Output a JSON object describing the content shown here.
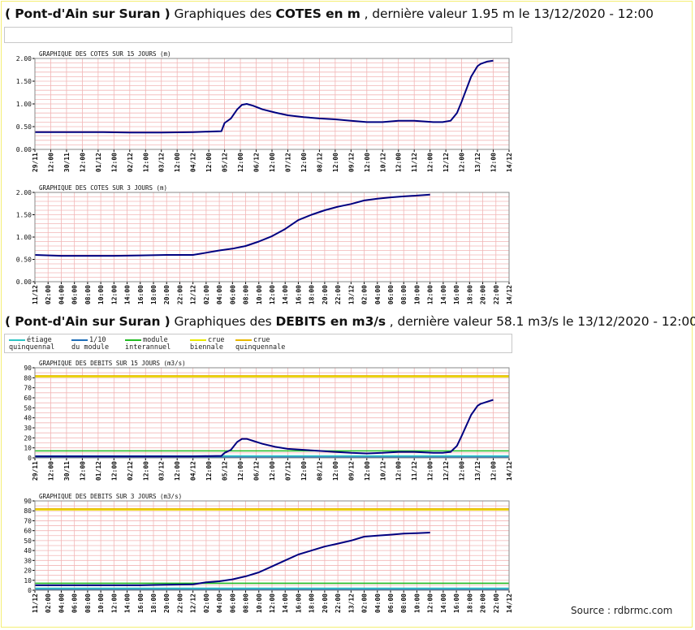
{
  "header_cotes": {
    "station": "( Pont-d'Ain sur Suran )",
    "mid": " Graphiques des ",
    "kind": "COTES en m",
    "tail": " , dernière valeur 1.95 m le 13/12/2020 - 12:00"
  },
  "header_debits": {
    "station": "( Pont-d'Ain sur Suran )",
    "mid": " Graphiques des ",
    "kind": "DEBITS en m3/s",
    "tail": " , dernière valeur 58.1 m3/s le 13/12/2020 - 12:00"
  },
  "legend": [
    {
      "line1": "étiage",
      "line2": "quinquennal",
      "color": "#2ec4c4"
    },
    {
      "line1": "1/10",
      "line2": "du module",
      "color": "#1f6fb8"
    },
    {
      "line1": "module",
      "line2": "interannuel",
      "color": "#22bb22"
    },
    {
      "line1": "crue",
      "line2": "biennale",
      "color": "#e8e800"
    },
    {
      "line1": "crue",
      "line2": "quinquennale",
      "color": "#e8b800"
    }
  ],
  "source": "Source : rdbrmc.com",
  "colors": {
    "series": "#000080",
    "grid": "#f2b6b6",
    "frame": "#8a8a8a"
  },
  "chart_data": [
    {
      "type": "line",
      "title": "GRAPHIQUE DES COTES SUR 15 JOURS (m)",
      "ylim": [
        0,
        2
      ],
      "yticks": [
        "0.00",
        "0.50",
        "1.00",
        "1.50",
        "2.00"
      ],
      "xticks": [
        "29/11",
        "12:00",
        "30/11",
        "12:00",
        "01/12",
        "12:00",
        "02/12",
        "12:00",
        "03/12",
        "12:00",
        "04/12",
        "12:00",
        "05/12",
        "12:00",
        "06/12",
        "12:00",
        "07/12",
        "12:00",
        "08/12",
        "12:00",
        "09/12",
        "12:00",
        "10/12",
        "12:00",
        "11/12",
        "12:00",
        "12/12",
        "12:00",
        "13/12",
        "12:00",
        "14/12"
      ],
      "x_unit": "days since 29/11 00:00",
      "series": [
        {
          "x": [
            0,
            1,
            2,
            3,
            4,
            5,
            5.9,
            6.0,
            6.2,
            6.4,
            6.55,
            6.7,
            6.9,
            7.2,
            7.6,
            8,
            8.5,
            9,
            9.5,
            10,
            10.5,
            11,
            11.5,
            12,
            12.6,
            12.9,
            13.15,
            13.35,
            13.5,
            13.8,
            14,
            14.1,
            14.3,
            14.5
          ],
          "y": [
            0.38,
            0.38,
            0.38,
            0.37,
            0.37,
            0.38,
            0.4,
            0.58,
            0.68,
            0.88,
            0.98,
            1.0,
            0.96,
            0.88,
            0.81,
            0.75,
            0.71,
            0.68,
            0.66,
            0.63,
            0.6,
            0.6,
            0.63,
            0.63,
            0.6,
            0.6,
            0.63,
            0.8,
            1.05,
            1.6,
            1.83,
            1.88,
            1.93,
            1.95
          ]
        }
      ]
    },
    {
      "type": "line",
      "title": "GRAPHIQUE DES COTES SUR 3 JOURS (m)",
      "ylim": [
        0,
        2
      ],
      "yticks": [
        "0.00",
        "0.50",
        "1.00",
        "1.50",
        "2.00"
      ],
      "xticks": [
        "11/12",
        "02:00",
        "04:00",
        "06:00",
        "08:00",
        "10:00",
        "12:00",
        "14:00",
        "16:00",
        "18:00",
        "20:00",
        "22:00",
        "12/12",
        "02:00",
        "04:00",
        "06:00",
        "08:00",
        "10:00",
        "12:00",
        "14:00",
        "16:00",
        "18:00",
        "20:00",
        "22:00",
        "13/12",
        "02:00",
        "04:00",
        "06:00",
        "08:00",
        "10:00",
        "12:00",
        "14:00",
        "16:00",
        "18:00",
        "20:00",
        "22:00",
        "14/12"
      ],
      "x_unit": "hours since 11/12 00:00",
      "series": [
        {
          "x": [
            0,
            4,
            8,
            12,
            16,
            20,
            24,
            26,
            28,
            30,
            32,
            34,
            36,
            38,
            40,
            42,
            44,
            46,
            48,
            50,
            52,
            54,
            56,
            58,
            60
          ],
          "y": [
            0.6,
            0.58,
            0.58,
            0.58,
            0.59,
            0.6,
            0.6,
            0.65,
            0.7,
            0.74,
            0.8,
            0.9,
            1.02,
            1.18,
            1.38,
            1.5,
            1.6,
            1.68,
            1.74,
            1.82,
            1.86,
            1.89,
            1.91,
            1.93,
            1.95
          ]
        }
      ]
    },
    {
      "type": "line",
      "title": "GRAPHIQUE DES DEBITS SUR 15 JOURS (m3/s)",
      "ylim": [
        0,
        90
      ],
      "yticks": [
        "0",
        "10",
        "20",
        "30",
        "40",
        "50",
        "60",
        "70",
        "80",
        "90"
      ],
      "xticks": [
        "29/11",
        "12:00",
        "30/11",
        "12:00",
        "01/12",
        "12:00",
        "02/12",
        "12:00",
        "03/12",
        "12:00",
        "04/12",
        "12:00",
        "05/12",
        "12:00",
        "06/12",
        "12:00",
        "07/12",
        "12:00",
        "08/12",
        "12:00",
        "09/12",
        "12:00",
        "10/12",
        "12:00",
        "11/12",
        "12:00",
        "12/12",
        "12:00",
        "13/12",
        "12:00",
        "14/12"
      ],
      "x_unit": "days since 29/11 00:00",
      "thresholds": [
        {
          "name": "étiage quinquennal",
          "value": 2
        },
        {
          "name": "1/10 du module",
          "value": 0.7
        },
        {
          "name": "module interannuel",
          "value": 7
        },
        {
          "name": "crue biennale",
          "value": 81
        },
        {
          "name": "crue quinquennale",
          "value": 82
        }
      ],
      "series": [
        {
          "x": [
            0,
            1,
            2,
            3,
            4,
            5,
            5.9,
            6.0,
            6.2,
            6.4,
            6.55,
            6.7,
            6.9,
            7.2,
            7.6,
            8,
            8.5,
            9,
            9.5,
            10,
            10.5,
            11,
            11.5,
            12,
            12.6,
            12.9,
            13.15,
            13.35,
            13.5,
            13.8,
            14,
            14.1,
            14.3,
            14.5
          ],
          "y": [
            1.5,
            1.5,
            1.5,
            1.5,
            1.5,
            1.5,
            2,
            5,
            8,
            16,
            19,
            19,
            17,
            14,
            11,
            9,
            8,
            7,
            6,
            5,
            4.5,
            5,
            6,
            6,
            5,
            5,
            6,
            12,
            22,
            43,
            52,
            54,
            56,
            58
          ]
        }
      ]
    },
    {
      "type": "line",
      "title": "GRAPHIQUE DES DEBITS SUR 3 JOURS (m3/s)",
      "ylim": [
        0,
        90
      ],
      "yticks": [
        "0",
        "10",
        "20",
        "30",
        "40",
        "50",
        "60",
        "70",
        "80",
        "90"
      ],
      "xticks": [
        "11/12",
        "02:00",
        "04:00",
        "06:00",
        "08:00",
        "10:00",
        "12:00",
        "14:00",
        "16:00",
        "18:00",
        "20:00",
        "22:00",
        "12/12",
        "02:00",
        "04:00",
        "06:00",
        "08:00",
        "10:00",
        "12:00",
        "14:00",
        "16:00",
        "18:00",
        "20:00",
        "22:00",
        "13/12",
        "02:00",
        "04:00",
        "06:00",
        "08:00",
        "10:00",
        "12:00",
        "14:00",
        "16:00",
        "18:00",
        "20:00",
        "22:00",
        "14/12"
      ],
      "x_unit": "hours since 11/12 00:00",
      "thresholds": [
        {
          "name": "étiage quinquennal",
          "value": 2
        },
        {
          "name": "1/10 du module",
          "value": 0.7
        },
        {
          "name": "module interannuel",
          "value": 7
        },
        {
          "name": "crue biennale",
          "value": 81
        },
        {
          "name": "crue quinquennale",
          "value": 82
        }
      ],
      "series": [
        {
          "x": [
            0,
            4,
            8,
            12,
            16,
            20,
            24,
            26,
            28,
            30,
            32,
            34,
            36,
            38,
            40,
            42,
            44,
            46,
            48,
            50,
            52,
            54,
            56,
            58,
            60
          ],
          "y": [
            5,
            5,
            5,
            5,
            5,
            5.5,
            6,
            8,
            9,
            11,
            14,
            18,
            24,
            30,
            36,
            40,
            44,
            47,
            50,
            54,
            55,
            56,
            57,
            57.5,
            58.1
          ]
        }
      ]
    }
  ]
}
